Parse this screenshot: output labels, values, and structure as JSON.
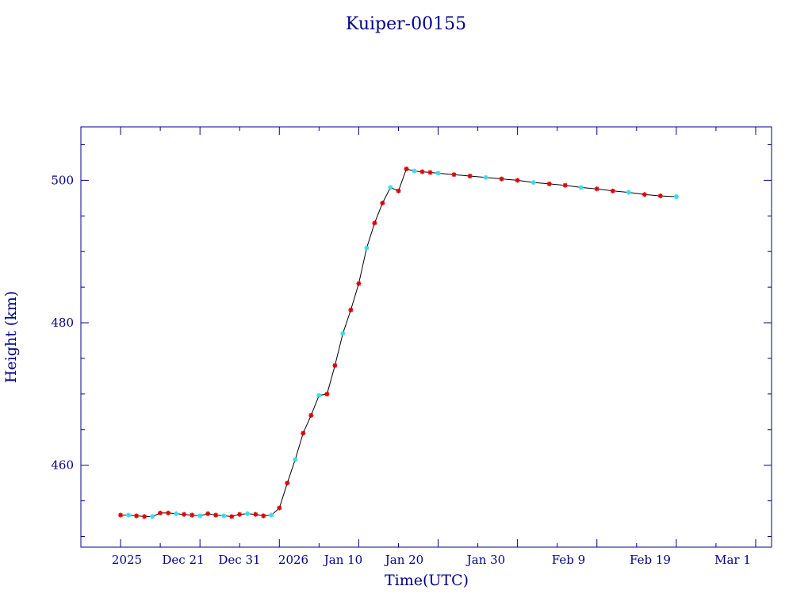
{
  "chart_data": {
    "type": "scatter",
    "title": "Kuiper-00155",
    "xlabel": "Time(UTC)",
    "ylabel": "Height (km)",
    "x_tick_labels": [
      "2025",
      "Dec 21",
      "Dec 31",
      "2026",
      "Jan 10",
      "Jan 20",
      "Jan 30",
      "Feb  9",
      "Feb 19",
      "Mar  1"
    ],
    "y_tick_labels": [
      "460",
      "480",
      "500"
    ],
    "ylim": [
      448.5,
      507.5
    ],
    "grid": false,
    "colors": {
      "axis": "#00008b",
      "line": "#000000",
      "marker_primary": "#dd0000",
      "marker_secondary": "#33ddee"
    },
    "series": [
      {
        "points": [
          [
            "2025-12-11",
            453.0
          ],
          [
            "2025-12-12",
            453.0
          ],
          [
            "2025-12-13",
            452.9
          ],
          [
            "2025-12-14",
            452.8
          ],
          [
            "2025-12-15",
            452.8
          ],
          [
            "2025-12-16",
            453.3
          ],
          [
            "2025-12-17",
            453.3
          ],
          [
            "2025-12-18",
            453.2
          ],
          [
            "2025-12-19",
            453.1
          ],
          [
            "2025-12-20",
            453.0
          ],
          [
            "2025-12-21",
            452.9
          ],
          [
            "2025-12-22",
            453.2
          ],
          [
            "2025-12-23",
            453.0
          ],
          [
            "2025-12-24",
            452.9
          ],
          [
            "2025-12-25",
            452.8
          ],
          [
            "2025-12-26",
            453.1
          ],
          [
            "2025-12-27",
            453.2
          ],
          [
            "2025-12-28",
            453.1
          ],
          [
            "2025-12-29",
            452.9
          ],
          [
            "2025-12-30",
            453.0
          ],
          [
            "2025-12-31",
            454.0
          ],
          [
            "2026-01-01",
            457.5
          ],
          [
            "2026-01-02",
            460.8
          ],
          [
            "2026-01-03",
            464.5
          ],
          [
            "2026-01-04",
            467.0
          ],
          [
            "2026-01-05",
            469.8
          ],
          [
            "2026-01-06",
            470.0
          ],
          [
            "2026-01-07",
            474.0
          ],
          [
            "2026-01-08",
            478.5
          ],
          [
            "2026-01-09",
            481.8
          ],
          [
            "2026-01-10",
            485.5
          ],
          [
            "2026-01-11",
            490.5
          ],
          [
            "2026-01-12",
            494.0
          ],
          [
            "2026-01-13",
            496.8
          ],
          [
            "2026-01-14",
            499.0
          ],
          [
            "2026-01-15",
            498.5
          ],
          [
            "2026-01-16",
            501.6
          ],
          [
            "2026-01-17",
            501.3
          ],
          [
            "2026-01-18",
            501.2
          ],
          [
            "2026-01-19",
            501.1
          ],
          [
            "2026-01-20",
            501.0
          ],
          [
            "2026-01-22",
            500.8
          ],
          [
            "2026-01-24",
            500.6
          ],
          [
            "2026-01-26",
            500.4
          ],
          [
            "2026-01-28",
            500.2
          ],
          [
            "2026-01-30",
            500.0
          ],
          [
            "2026-02-01",
            499.7
          ],
          [
            "2026-02-03",
            499.5
          ],
          [
            "2026-02-05",
            499.3
          ],
          [
            "2026-02-07",
            499.0
          ],
          [
            "2026-02-09",
            498.8
          ],
          [
            "2026-02-11",
            498.5
          ],
          [
            "2026-02-13",
            498.3
          ],
          [
            "2026-02-15",
            498.0
          ],
          [
            "2026-02-17",
            497.8
          ],
          [
            "2026-02-19",
            497.7
          ]
        ]
      }
    ]
  }
}
